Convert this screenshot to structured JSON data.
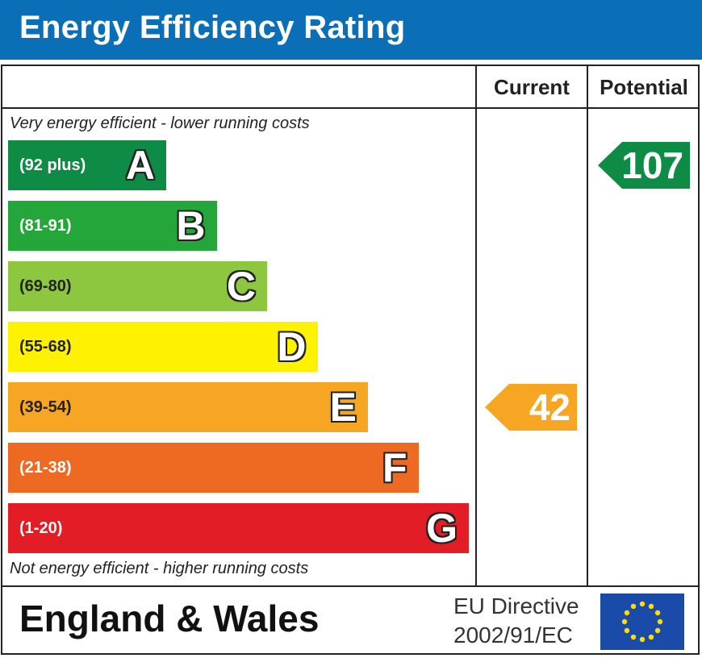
{
  "header": {
    "title": "Energy Efficiency Rating"
  },
  "columns": {
    "current": "Current",
    "potential": "Potential"
  },
  "captions": {
    "top": "Very energy efficient - lower running costs",
    "bottom": "Not energy efficient - higher running costs"
  },
  "footer": {
    "region": "England & Wales",
    "directive_line1": "EU Directive",
    "directive_line2": "2002/91/EC",
    "flag_icon": "eu-flag-icon"
  },
  "chart_data": {
    "type": "bar",
    "categories": [
      "A",
      "B",
      "C",
      "D",
      "E",
      "F",
      "G"
    ],
    "ranges": [
      "(92 plus)",
      "(81-91)",
      "(69-80)",
      "(55-68)",
      "(39-54)",
      "(21-38)",
      "(1-20)"
    ],
    "colors": [
      "#0e8b45",
      "#25a63a",
      "#8dc63f",
      "#fff200",
      "#f6a623",
      "#ee6a23",
      "#e31d25"
    ],
    "range_text_colors": [
      "#ffffff",
      "#ffffff",
      "#222222",
      "#222222",
      "#222222",
      "#ffffff",
      "#ffffff"
    ],
    "current": {
      "value": 42,
      "band": "E",
      "color": "#f6a623"
    },
    "potential": {
      "value": 107,
      "band": "A",
      "color": "#0e8b45"
    }
  }
}
